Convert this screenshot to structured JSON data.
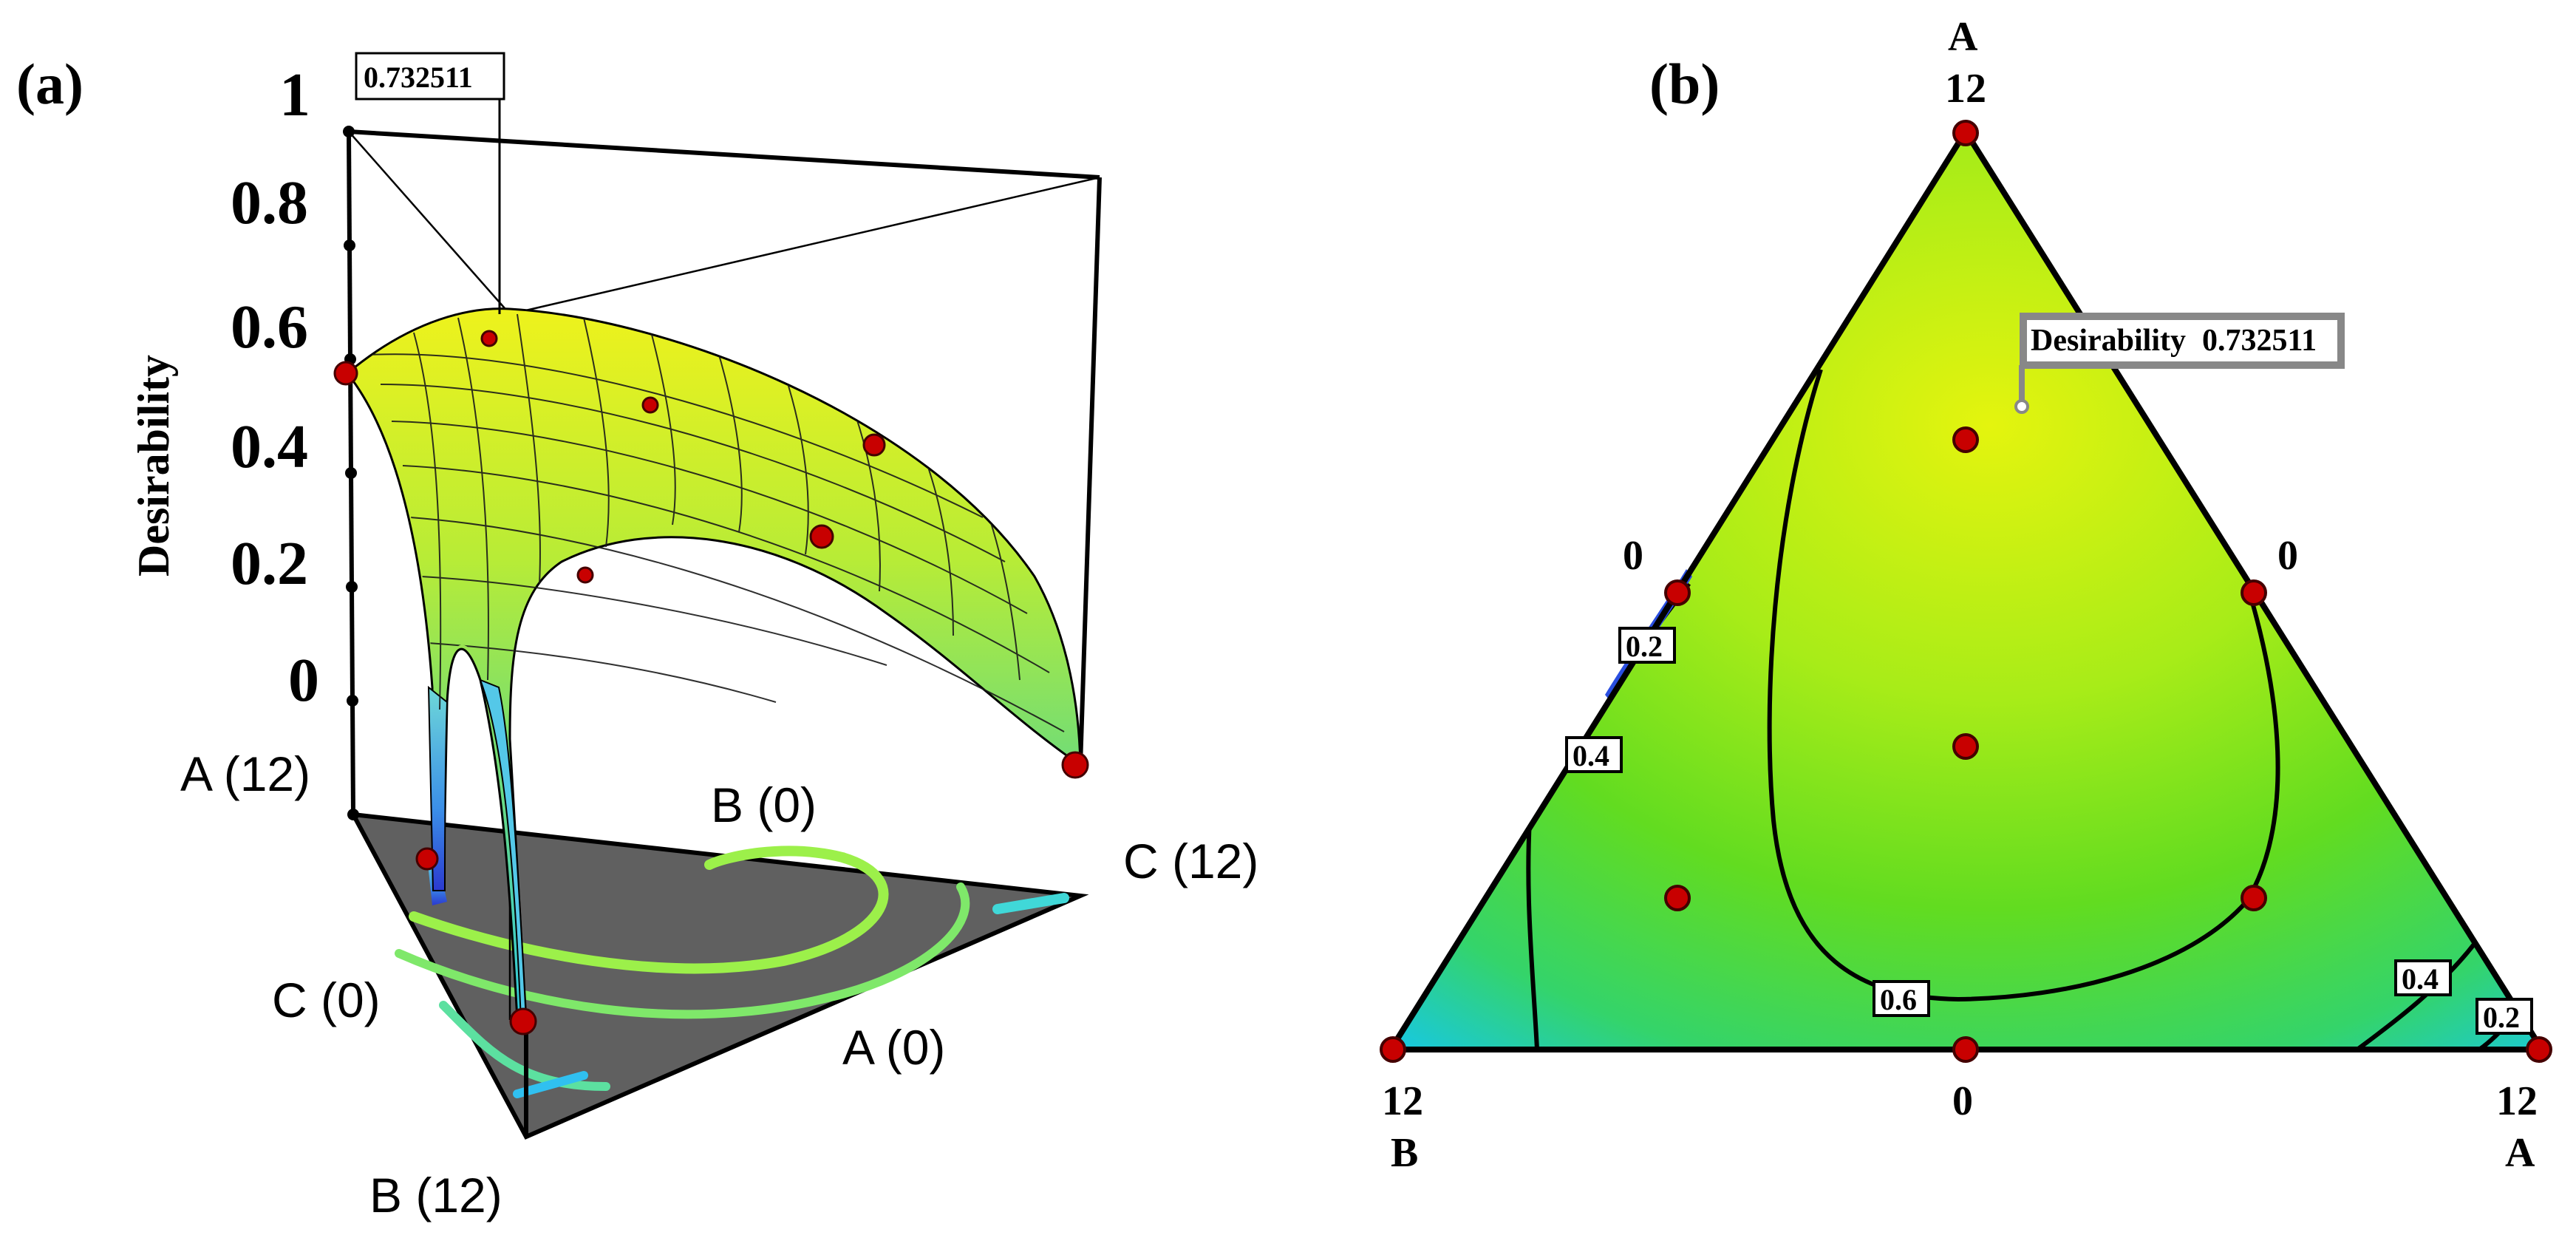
{
  "colors": {
    "surface_high": "#e6f01a",
    "surface_mid": "#7fe05a",
    "surface_low": "#24c8e6",
    "surface_min": "#2a3cd0",
    "floor": "#606060",
    "design_point": "#c80000",
    "contour_line": "#000000"
  },
  "panel_a": {
    "label": "(a)",
    "callout": "0.732511",
    "z_axis_label": "Desirability",
    "z_ticks": [
      "1",
      "0.8",
      "0.6",
      "0.4",
      "0.2",
      "0"
    ],
    "corner_labels": {
      "a12": "A (12)",
      "b0": "B (0)",
      "c12": "C (12)",
      "c0": "C (0)",
      "a0": "A (0)",
      "b12": "B (12)"
    }
  },
  "panel_b": {
    "label": "(b)",
    "vertex_top_name": "A",
    "vertex_top_value": "12",
    "left_edge_value": "0",
    "right_edge_value": "0",
    "bottom_left_value": "12",
    "bottom_left_name": "B",
    "bottom_mid_value": "0",
    "bottom_right_value": "12",
    "bottom_right_name": "A",
    "callout_name": "Desirability",
    "callout_value": "0.732511",
    "contour_labels": [
      "0.2",
      "0.4",
      "0.6",
      "0.4",
      "0.2"
    ]
  },
  "chart_data": [
    {
      "type": "surface",
      "title": "",
      "zlabel": "Desirability",
      "zlim": [
        0,
        1
      ],
      "z_ticks": [
        0,
        0.2,
        0.4,
        0.6,
        0.8,
        1
      ],
      "optimum_desirability": 0.732511,
      "corner_values": {
        "A": [
          0,
          12
        ],
        "B": [
          0,
          12
        ],
        "C": [
          0,
          12
        ]
      },
      "design_point_count": 10,
      "floor_contours": true
    },
    {
      "type": "heatmap",
      "subtype": "ternary-contour",
      "components": [
        "A",
        "B",
        "C"
      ],
      "component_range": [
        0,
        12
      ],
      "contour_levels": [
        0.2,
        0.4,
        0.6
      ],
      "optimum_desirability": 0.732511,
      "design_point_count": 10
    }
  ]
}
